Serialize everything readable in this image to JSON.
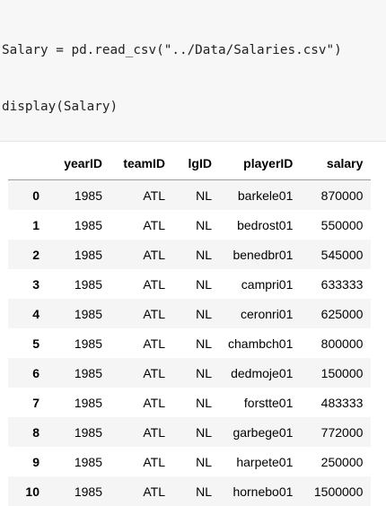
{
  "code_cell": {
    "lines": [
      "Salary = pd.read_csv(\"../Data/Salaries.csv\")",
      "display(Salary)"
    ]
  },
  "table": {
    "columns": [
      "",
      "yearID",
      "teamID",
      "lgID",
      "playerID",
      "salary"
    ],
    "rows": [
      {
        "index": "0",
        "yearID": "1985",
        "teamID": "ATL",
        "lgID": "NL",
        "playerID": "barkele01",
        "salary": "870000"
      },
      {
        "index": "1",
        "yearID": "1985",
        "teamID": "ATL",
        "lgID": "NL",
        "playerID": "bedrost01",
        "salary": "550000"
      },
      {
        "index": "2",
        "yearID": "1985",
        "teamID": "ATL",
        "lgID": "NL",
        "playerID": "benedbr01",
        "salary": "545000"
      },
      {
        "index": "3",
        "yearID": "1985",
        "teamID": "ATL",
        "lgID": "NL",
        "playerID": "campri01",
        "salary": "633333"
      },
      {
        "index": "4",
        "yearID": "1985",
        "teamID": "ATL",
        "lgID": "NL",
        "playerID": "ceronri01",
        "salary": "625000"
      },
      {
        "index": "5",
        "yearID": "1985",
        "teamID": "ATL",
        "lgID": "NL",
        "playerID": "chambch01",
        "salary": "800000"
      },
      {
        "index": "6",
        "yearID": "1985",
        "teamID": "ATL",
        "lgID": "NL",
        "playerID": "dedmoje01",
        "salary": "150000"
      },
      {
        "index": "7",
        "yearID": "1985",
        "teamID": "ATL",
        "lgID": "NL",
        "playerID": "forstte01",
        "salary": "483333"
      },
      {
        "index": "8",
        "yearID": "1985",
        "teamID": "ATL",
        "lgID": "NL",
        "playerID": "garbege01",
        "salary": "772000"
      },
      {
        "index": "9",
        "yearID": "1985",
        "teamID": "ATL",
        "lgID": "NL",
        "playerID": "harpete01",
        "salary": "250000"
      },
      {
        "index": "10",
        "yearID": "1985",
        "teamID": "ATL",
        "lgID": "NL",
        "playerID": "hornebo01",
        "salary": "1500000"
      }
    ]
  },
  "colors": {
    "code_background": "#f7f7f7",
    "row_stripe": "#f5f5f5",
    "text": "#000000"
  }
}
